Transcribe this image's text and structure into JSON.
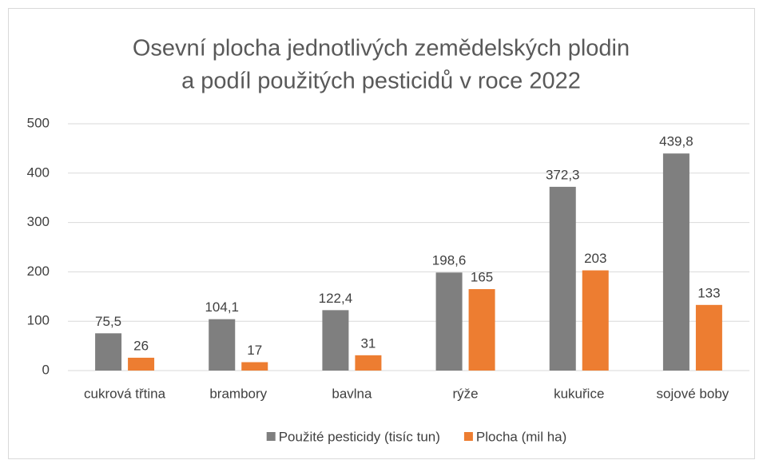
{
  "chart_data": {
    "type": "bar",
    "title": [
      "Osevní plocha jednotlivých zemědelských plodin",
      "a podíl použitých pesticidů v roce 2022"
    ],
    "categories": [
      "cukrová třtina",
      "brambory",
      "bavlna",
      "rýže",
      "kukuřice",
      "sojové boby"
    ],
    "series": [
      {
        "name": "Použité pesticidy (tisíc tun)",
        "color": "#7f7f7f",
        "values": [
          75.5,
          104.1,
          122.4,
          198.6,
          372.3,
          439.8
        ],
        "value_labels": [
          "75,5",
          "104,1",
          "122,4",
          "198,6",
          "372,3",
          "439,8"
        ]
      },
      {
        "name": "Plocha (mil ha)",
        "color": "#ed7d31",
        "values": [
          26,
          17,
          31,
          165,
          203,
          133
        ]
      }
    ],
    "ylim": [
      0,
      500
    ],
    "yticks": [
      0,
      100,
      200,
      300,
      400,
      500
    ],
    "grid": true,
    "legend": "bottom"
  }
}
